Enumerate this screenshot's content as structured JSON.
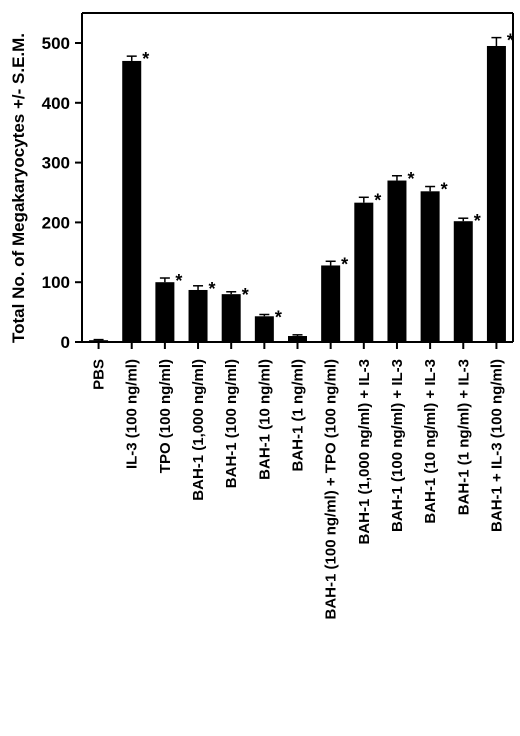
{
  "chart_data": {
    "type": "bar",
    "title": "",
    "xlabel": "",
    "ylabel": "Total No. of Megakaryocytes +/- S.E.M.",
    "ylim": [
      0,
      500
    ],
    "yticks": [
      0,
      100,
      200,
      300,
      400,
      500
    ],
    "categories": [
      "PBS",
      "IL-3 (100 ng/ml)",
      "TPO (100 ng/ml)",
      "BAH-1 (1,000 ng/ml)",
      "BAH-1 (100 ng/ml)",
      "BAH-1 (10 ng/ml)",
      "BAH-1 (1 ng/ml)",
      "BAH-1 (100 ng/ml) + TPO (100 ng/ml)",
      "BAH-1 (1,000 ng/ml) + IL-3",
      "BAH-1 (100 ng/ml) + IL-3",
      "BAH-1 (10 ng/ml) + IL-3",
      "BAH-1 (1 ng/ml) + IL-3",
      "BAH-1 + IL-3 (100 ng/ml)"
    ],
    "values": [
      3,
      470,
      100,
      87,
      80,
      43,
      10,
      128,
      233,
      270,
      252,
      202,
      495
    ],
    "errors": [
      1,
      8,
      7,
      7,
      4,
      3,
      2,
      7,
      9,
      8,
      8,
      5,
      14
    ],
    "significance": [
      "",
      "*",
      "*",
      "*",
      "*",
      "*",
      "",
      "*",
      "*",
      "*",
      "*",
      "*",
      "*"
    ],
    "bar_color": "#000000",
    "grid": false,
    "legend": "none"
  }
}
